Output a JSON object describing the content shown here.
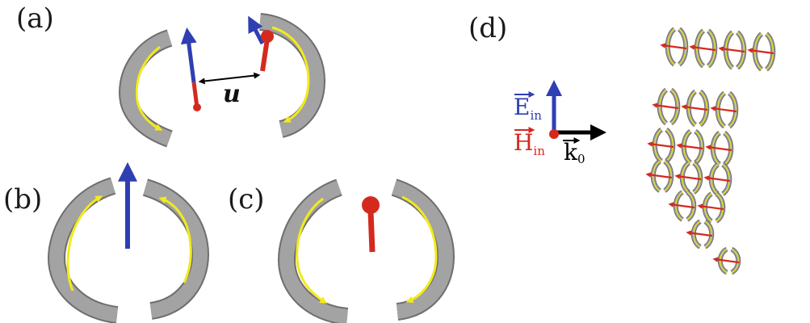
{
  "colors": {
    "ring_gray": "#9a9a9a",
    "ring_edge": "#6e6e6e",
    "current_yellow": "#f2ea1c",
    "electric_blue": "#2f3fb3",
    "magnetic_red": "#d42a1e",
    "wave_black": "#000000"
  },
  "panels": {
    "a": {
      "label": "(a)",
      "distance_label": "u"
    },
    "b": {
      "label": "(b)"
    },
    "c": {
      "label": "(c)"
    },
    "d": {
      "label": "(d)",
      "e_field": {
        "letter": "E",
        "subscript": "in"
      },
      "h_field": {
        "letter": "H",
        "subscript": "in"
      },
      "k_vector": {
        "letter": "k",
        "subscript": "0"
      },
      "array_rows": [
        4,
        3,
        3,
        3,
        2,
        1,
        1
      ]
    }
  }
}
